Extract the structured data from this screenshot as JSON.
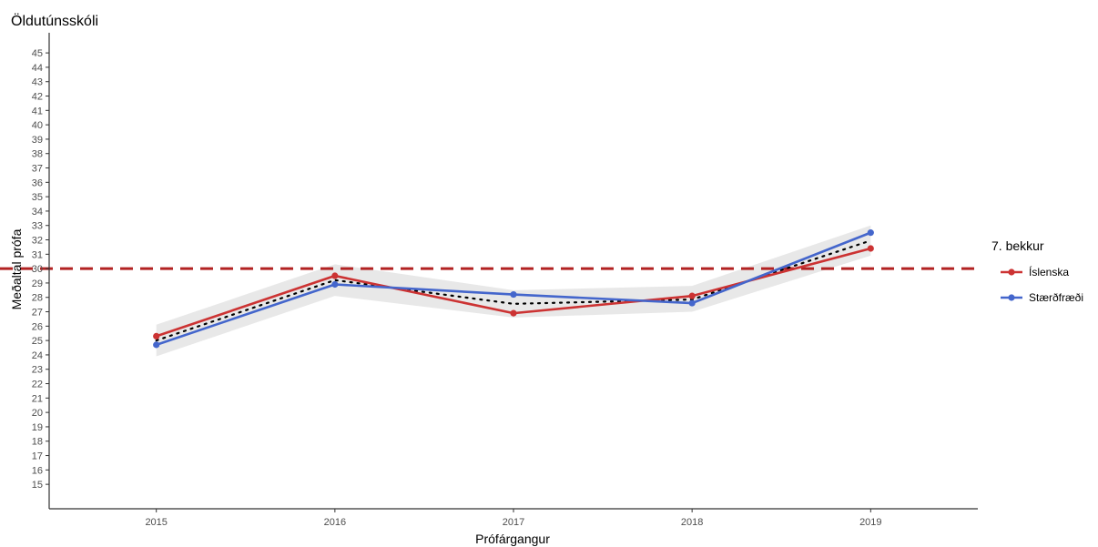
{
  "chart_data": {
    "type": "line",
    "title": "Öldutúnsskóli",
    "xlabel": "Prófárgangur",
    "ylabel": "Meðaltal prófa",
    "x": [
      2015,
      2016,
      2017,
      2018,
      2019
    ],
    "x_ticks": [
      "2015",
      "2016",
      "2017",
      "2018",
      "2019"
    ],
    "xlim": [
      2014.4,
      2019.6
    ],
    "y_ticks": [
      15,
      16,
      17,
      18,
      19,
      20,
      21,
      22,
      23,
      24,
      25,
      26,
      27,
      28,
      29,
      30,
      31,
      32,
      33,
      34,
      35,
      36,
      37,
      38,
      39,
      40,
      41,
      42,
      43,
      44,
      45
    ],
    "ylim": [
      13.3,
      46.4
    ],
    "series": [
      {
        "name": "Íslenska",
        "values": [
          25.3,
          29.5,
          26.9,
          28.1,
          31.4
        ],
        "color": "#cc3333"
      },
      {
        "name": "Stærðfræði",
        "values": [
          24.7,
          28.9,
          28.2,
          27.6,
          32.5
        ],
        "color": "#4466cc"
      }
    ],
    "mean_line": {
      "values": [
        25.0,
        29.2,
        27.55,
        27.85,
        31.95
      ],
      "color": "#000000",
      "style": "dotted"
    },
    "band": {
      "lower": [
        23.9,
        28.1,
        26.6,
        27.0,
        30.9
      ],
      "upper": [
        26.1,
        30.3,
        28.5,
        28.8,
        33.0
      ],
      "color": "#d9d9d9"
    },
    "reference_line": {
      "y": 30,
      "color": "#b22222",
      "style": "dashed"
    },
    "legend": {
      "title": "7. bekkur",
      "position": "right"
    },
    "grid": false
  }
}
